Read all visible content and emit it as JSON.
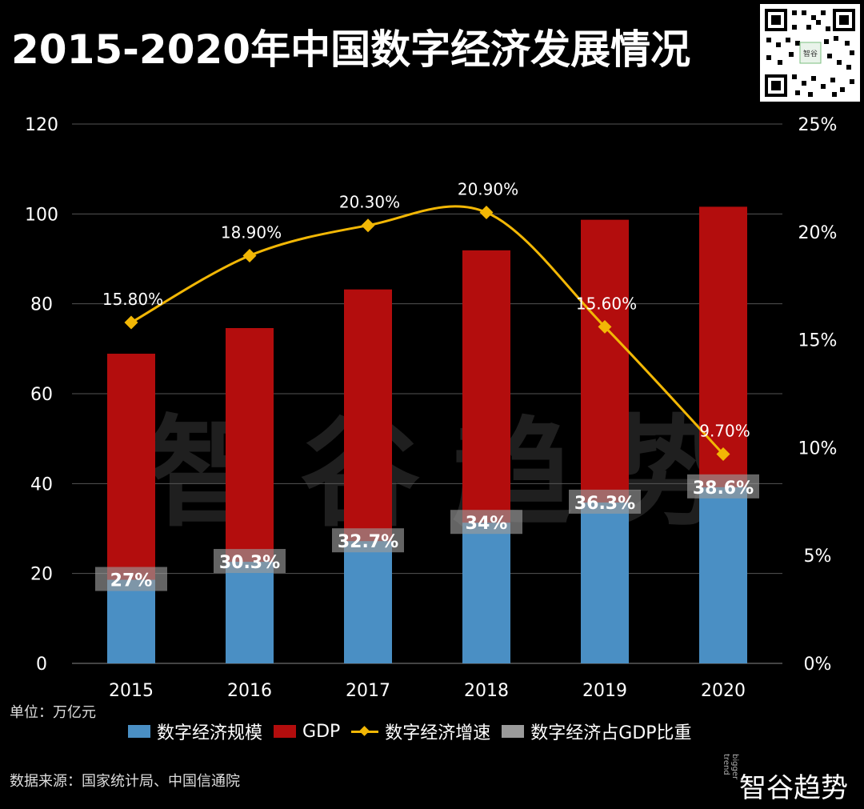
{
  "title": "2015-2020年中国数字经济发展情况",
  "watermark": "智谷趋势",
  "unit": "单位：万亿元",
  "source": "数据来源：国家统计局、中国信通院",
  "brand": {
    "name": "智谷趋势",
    "sub": "bigger trend"
  },
  "colors": {
    "digital": "#4a8fc4",
    "gdp": "#b30d0d",
    "growth": "#f2b705",
    "share": "#9a9a9a"
  },
  "legend": {
    "digital": "数字经济规模",
    "gdp": "GDP",
    "growth": "数字经济增速",
    "share": "数字经济占GDP比重"
  },
  "chart_data": {
    "type": "bar",
    "title": "2015-2020年中国数字经济发展情况",
    "categories": [
      "2015",
      "2016",
      "2017",
      "2018",
      "2019",
      "2020"
    ],
    "left_axis": {
      "ylim": [
        0,
        120
      ],
      "ticks": [
        "0",
        "20",
        "40",
        "60",
        "80",
        "100",
        "120"
      ]
    },
    "right_axis": {
      "ylim": [
        0,
        25
      ],
      "ticks": [
        "0%",
        "5%",
        "10%",
        "15%",
        "20%",
        "25%"
      ]
    },
    "series": [
      {
        "name": "数字经济规模",
        "type": "bar",
        "axis": "left",
        "values": [
          18.6,
          22.6,
          27.2,
          31.3,
          35.8,
          39.2
        ]
      },
      {
        "name": "GDP",
        "type": "bar",
        "axis": "left",
        "values": [
          68.9,
          74.6,
          83.2,
          91.9,
          98.7,
          101.6
        ]
      },
      {
        "name": "数字经济增速",
        "type": "line",
        "axis": "right",
        "values": [
          15.8,
          18.9,
          20.3,
          20.9,
          15.6,
          9.7
        ],
        "labels": [
          "15.80%",
          "18.90%",
          "20.30%",
          "20.90%",
          "15.60%",
          "9.70%"
        ]
      },
      {
        "name": "数字经济占GDP比重",
        "type": "label",
        "labels": [
          "27%",
          "30.3%",
          "32.7%",
          "34%",
          "36.3%",
          "38.6%"
        ]
      }
    ],
    "grid": true,
    "legend_position": "bottom"
  }
}
